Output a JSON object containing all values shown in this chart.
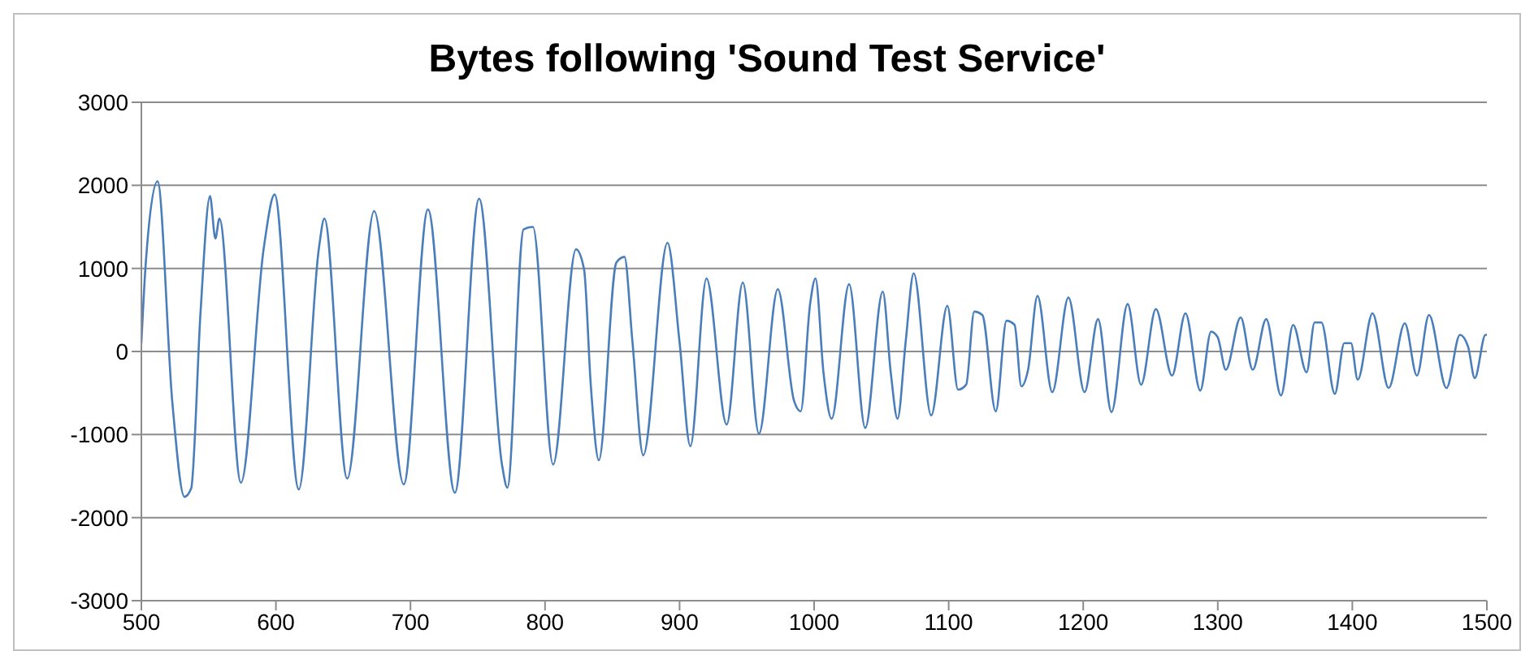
{
  "chart_data": {
    "type": "line",
    "title": "Bytes following 'Sound Test Service'",
    "x": [
      500,
      503,
      512,
      523,
      532,
      537,
      544,
      551,
      555,
      558,
      574,
      591,
      599,
      617,
      632,
      636,
      653,
      673,
      695,
      713,
      733,
      751,
      768,
      772,
      784,
      791,
      806,
      823,
      829,
      834,
      840,
      853,
      859,
      865,
      873,
      891,
      900,
      908,
      920,
      935,
      947,
      959,
      973,
      985,
      990,
      997,
      1001,
      1007,
      1013,
      1026,
      1038,
      1051,
      1057,
      1062,
      1068,
      1074,
      1087,
      1099,
      1107,
      1113,
      1119,
      1125,
      1135,
      1143,
      1149,
      1154,
      1159,
      1166,
      1177,
      1189,
      1201,
      1211,
      1221,
      1233,
      1243,
      1254,
      1266,
      1276,
      1287,
      1295,
      1300,
      1306,
      1317,
      1326,
      1336,
      1347,
      1356,
      1366,
      1372,
      1377,
      1387,
      1394,
      1399,
      1404,
      1415,
      1427,
      1439,
      1448,
      1457,
      1470,
      1480,
      1486,
      1491,
      1499,
      1500
    ],
    "series": [
      {
        "color": "#4a7ebb",
        "values": [
          100,
          1000,
          2050,
          -610,
          -1750,
          -1650,
          480,
          1870,
          1360,
          1600,
          -1580,
          1250,
          1890,
          -1660,
          1250,
          1600,
          -1530,
          1690,
          -1600,
          1710,
          -1700,
          1840,
          -1360,
          -1640,
          1470,
          1500,
          -1360,
          1230,
          990,
          -400,
          -1310,
          1070,
          1140,
          110,
          -1250,
          1310,
          110,
          -1140,
          880,
          -880,
          830,
          -990,
          750,
          -590,
          -720,
          570,
          880,
          -260,
          -810,
          810,
          -920,
          720,
          -260,
          -810,
          110,
          940,
          -770,
          550,
          -460,
          -400,
          480,
          440,
          -720,
          370,
          320,
          -420,
          -220,
          670,
          -490,
          650,
          -490,
          390,
          -730,
          570,
          -400,
          510,
          -290,
          460,
          -470,
          240,
          170,
          -220,
          410,
          -220,
          390,
          -530,
          320,
          -250,
          350,
          350,
          -510,
          100,
          100,
          -340,
          460,
          -440,
          340,
          -290,
          440,
          -440,
          200,
          60,
          -320,
          200,
          200
        ]
      }
    ],
    "xlim": [
      500,
      1500
    ],
    "xticks": [
      500,
      600,
      700,
      800,
      900,
      1000,
      1100,
      1200,
      1300,
      1400,
      1500
    ],
    "ylim": [
      -3000,
      3000
    ],
    "yticks": [
      -3000,
      -2000,
      -1000,
      0,
      1000,
      2000,
      3000
    ],
    "grid": "y",
    "marker": "none",
    "line_style": "solid"
  }
}
